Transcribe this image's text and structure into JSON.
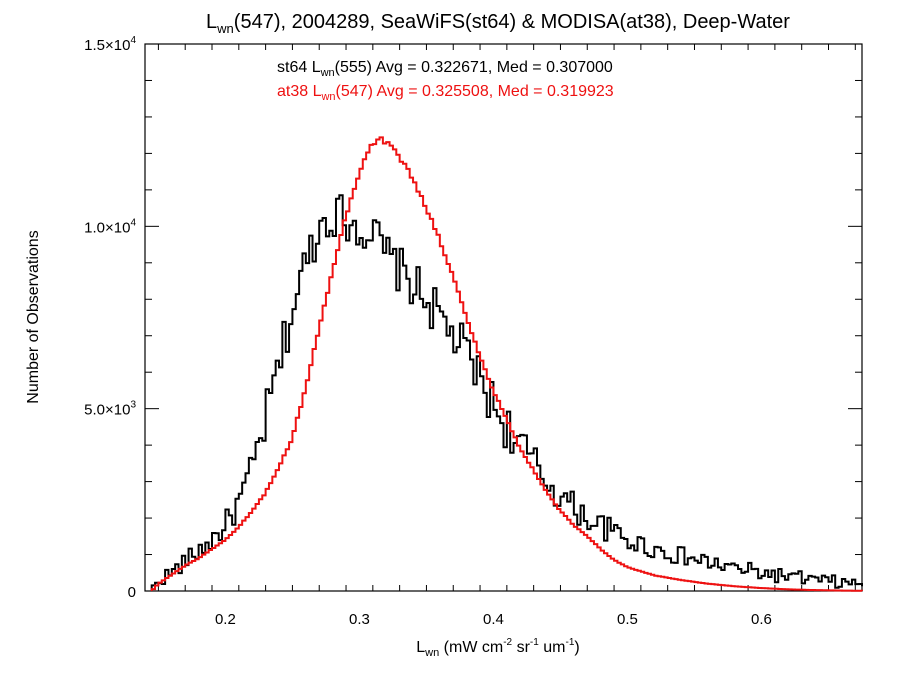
{
  "chart_data": {
    "type": "line",
    "title": {
      "pre": "L",
      "sub": "wn",
      "post": "(547), 2004289, SeaWiFS(st64) & MODISA(at38), Deep-Water"
    },
    "xlabel": {
      "pre": "L",
      "sub": "wn",
      "post": " (mW cm",
      "sup1": "-2",
      "mid1": " sr",
      "sup2": "-1",
      "mid2": " um",
      "sup3": "-1",
      "end": ")"
    },
    "ylabel": "Number of Observations",
    "xlim": [
      0.14,
      0.675
    ],
    "ylim": [
      0,
      15000
    ],
    "x_ticks": [
      {
        "v": 0.2,
        "label": "0.2"
      },
      {
        "v": 0.3,
        "label": "0.3"
      },
      {
        "v": 0.4,
        "label": "0.4"
      },
      {
        "v": 0.5,
        "label": "0.5"
      },
      {
        "v": 0.6,
        "label": "0.6"
      }
    ],
    "y_ticks": [
      {
        "v": 0,
        "mant": "0",
        "exp": ""
      },
      {
        "v": 5000,
        "mant": "5.0×10",
        "exp": "3"
      },
      {
        "v": 10000,
        "mant": "1.0×10",
        "exp": "4"
      },
      {
        "v": 15000,
        "mant": "1.5×10",
        "exp": "4"
      }
    ],
    "annotations": [
      {
        "color": "#000000",
        "pre": "st64 L",
        "sub": "wn",
        "post": "(555) Avg = 0.322671, Med = 0.307000"
      },
      {
        "color": "#ee1111",
        "pre": "at38 L",
        "sub": "wn",
        "post": "(547) Avg = 0.325508, Med = 0.319923"
      }
    ],
    "series": [
      {
        "color": "#000000",
        "x": [
          0.145,
          0.15,
          0.16,
          0.17,
          0.18,
          0.19,
          0.2,
          0.21,
          0.22,
          0.23,
          0.24,
          0.25,
          0.26,
          0.27,
          0.28,
          0.29,
          0.3,
          0.31,
          0.32,
          0.33,
          0.34,
          0.35,
          0.36,
          0.37,
          0.38,
          0.39,
          0.4,
          0.41,
          0.42,
          0.43,
          0.44,
          0.45,
          0.46,
          0.47,
          0.48,
          0.49,
          0.5,
          0.52,
          0.54,
          0.56,
          0.58,
          0.6,
          0.62,
          0.64,
          0.66,
          0.675
        ],
        "y": [
          0,
          300,
          500,
          800,
          1100,
          1400,
          1800,
          2400,
          3300,
          4700,
          6200,
          7700,
          9000,
          10000,
          10400,
          10200,
          10000,
          9800,
          9200,
          8800,
          8400,
          8000,
          7500,
          7000,
          6500,
          5800,
          5100,
          4500,
          4000,
          3500,
          3000,
          2600,
          2300,
          2000,
          1800,
          1600,
          1400,
          1150,
          950,
          780,
          620,
          500,
          390,
          300,
          220,
          180
        ],
        "noise": 650
      },
      {
        "color": "#ee1111",
        "x": [
          0.145,
          0.15,
          0.16,
          0.17,
          0.18,
          0.19,
          0.2,
          0.21,
          0.22,
          0.23,
          0.24,
          0.25,
          0.26,
          0.27,
          0.28,
          0.29,
          0.3,
          0.31,
          0.315,
          0.32,
          0.33,
          0.34,
          0.35,
          0.36,
          0.37,
          0.38,
          0.39,
          0.4,
          0.41,
          0.42,
          0.43,
          0.44,
          0.45,
          0.46,
          0.47,
          0.48,
          0.49,
          0.5,
          0.52,
          0.54,
          0.56,
          0.58,
          0.6,
          0.62,
          0.64,
          0.66,
          0.675
        ],
        "y": [
          0,
          200,
          450,
          700,
          900,
          1150,
          1400,
          1750,
          2200,
          2700,
          3400,
          4200,
          5600,
          7200,
          8800,
          10300,
          11500,
          12300,
          12400,
          12300,
          11900,
          11300,
          10500,
          9600,
          8600,
          7500,
          6400,
          5500,
          4700,
          3900,
          3300,
          2700,
          2200,
          1800,
          1500,
          1150,
          850,
          650,
          430,
          300,
          200,
          130,
          80,
          45,
          25,
          12,
          5
        ],
        "noise": 0
      }
    ]
  }
}
